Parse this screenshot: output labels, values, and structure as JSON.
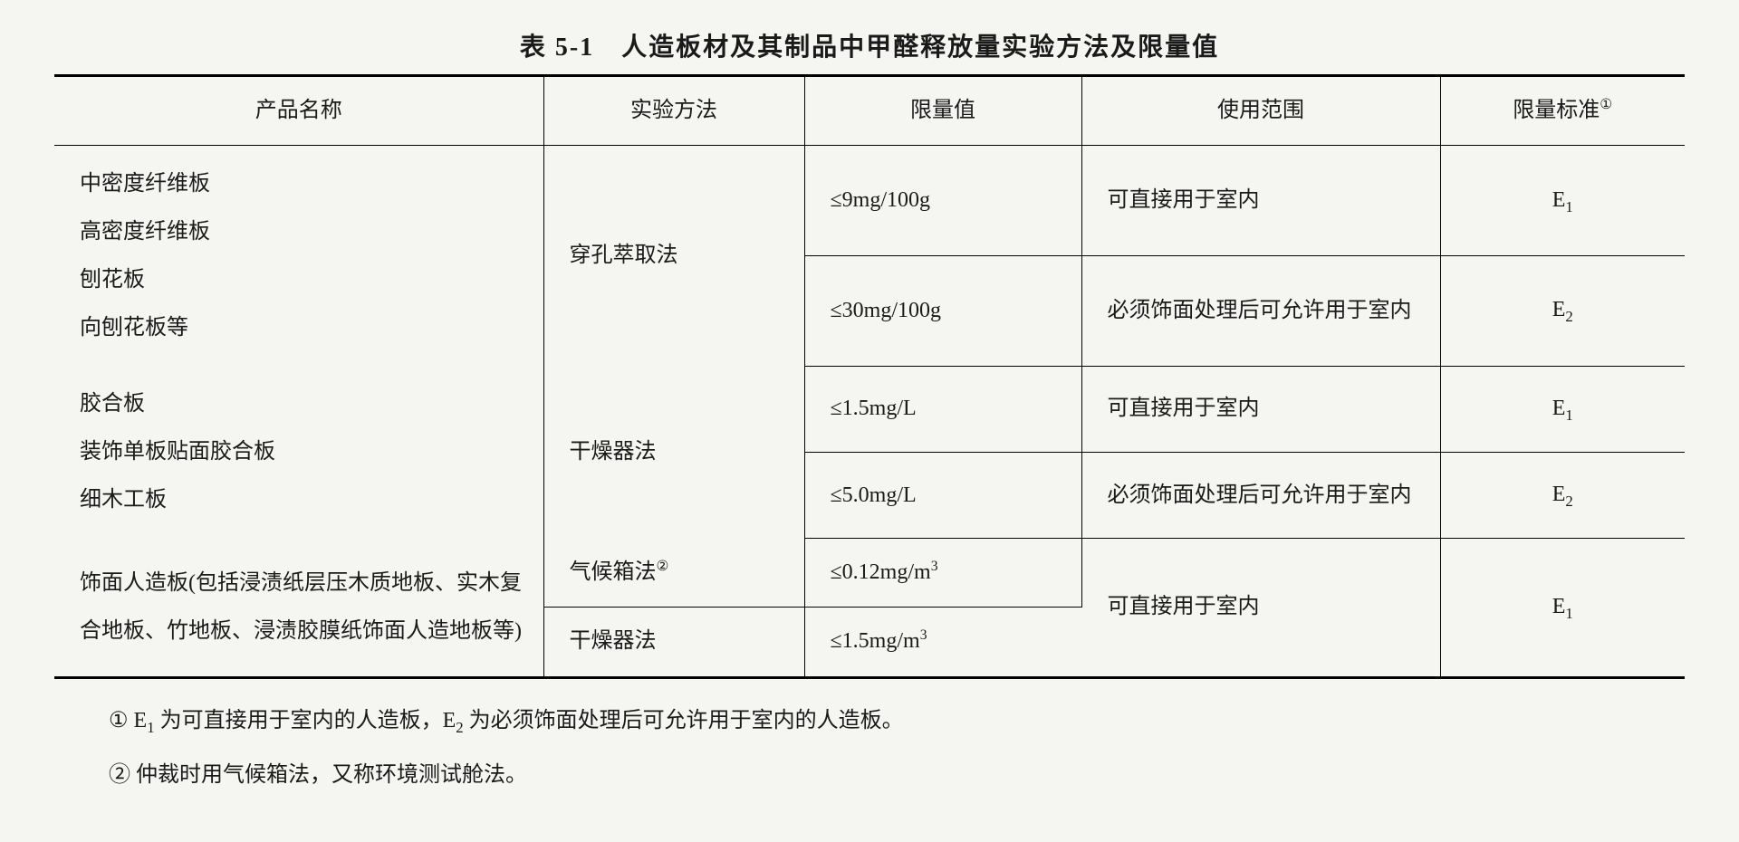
{
  "title": "表 5-1　人造板材及其制品中甲醛释放量实验方法及限量值",
  "headers": {
    "product": "产品名称",
    "method": "实验方法",
    "limit": "限量值",
    "scope": "使用范围",
    "standard_prefix": "限量标准",
    "standard_sup": "①"
  },
  "group1": {
    "product_lines": [
      "中密度纤维板",
      "高密度纤维板",
      "刨花板",
      "向刨花板等"
    ],
    "method": "穿孔萃取法",
    "row1": {
      "limit": "≤9mg/100g",
      "scope": "可直接用于室内",
      "standard_base": "E",
      "standard_sub": "1"
    },
    "row2": {
      "limit": "≤30mg/100g",
      "scope": "必须饰面处理后可允许用于室内",
      "standard_base": "E",
      "standard_sub": "2"
    }
  },
  "group2": {
    "product_lines": [
      "胶合板",
      "装饰单板贴面胶合板",
      "细木工板"
    ],
    "method": "干燥器法",
    "row1": {
      "limit": "≤1.5mg/L",
      "scope": "可直接用于室内",
      "standard_base": "E",
      "standard_sub": "1"
    },
    "row2": {
      "limit": "≤5.0mg/L",
      "scope": "必须饰面处理后可允许用于室内",
      "standard_base": "E",
      "standard_sub": "2"
    }
  },
  "group3": {
    "product": "饰面人造板(包括浸渍纸层压木质地板、实木复合地板、竹地板、浸渍胶膜纸饰面人造地板等)",
    "row1": {
      "method_prefix": "气候箱法",
      "method_sup": "②",
      "limit_prefix": "≤0.12mg/m",
      "limit_sup": "3"
    },
    "row2": {
      "method": "干燥器法",
      "limit_prefix": "≤1.5mg/m",
      "limit_sup": "3"
    },
    "scope": "可直接用于室内",
    "standard_base": "E",
    "standard_sub": "1"
  },
  "footnotes": {
    "note1_prefix": "① E",
    "note1_sub1": "1",
    "note1_mid": " 为可直接用于室内的人造板，E",
    "note1_sub2": "2",
    "note1_suffix": " 为必须饰面处理后可允许用于室内的人造板。",
    "note2": "② 仲裁时用气候箱法，又称环境测试舱法。"
  },
  "styling": {
    "background_color": "#f5f5f2",
    "text_color": "#1a1a1a",
    "border_color": "#000000",
    "title_fontsize": 28,
    "body_fontsize": 24,
    "outer_border_width": 3,
    "inner_border_width": 1.5,
    "font_family": "SimSun"
  }
}
